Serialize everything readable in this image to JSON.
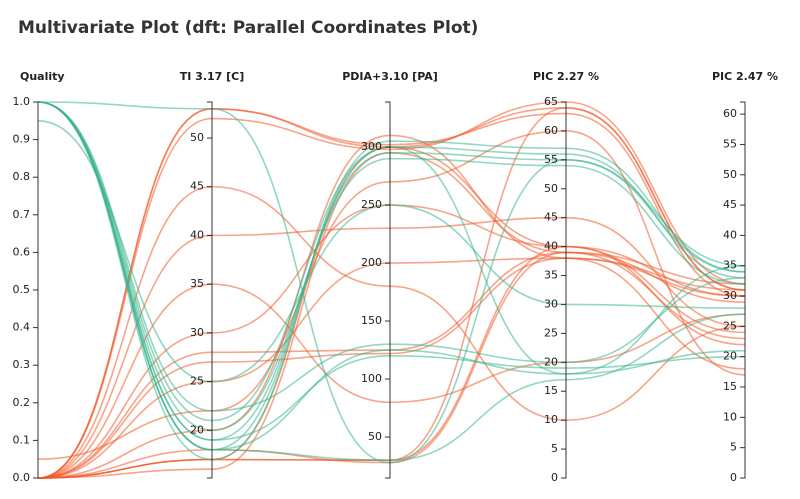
{
  "chart_data": {
    "type": "parallel",
    "title": "Multivariate Plot (dft: Parallel Coordinates Plot)",
    "dimensions": [
      {
        "name": "Quality",
        "ylim": [
          0,
          1
        ],
        "yticks": [
          {
            "value": 0,
            "label": "0.0"
          },
          0.1,
          0.2,
          0.3,
          0.4,
          0.5,
          0.6,
          0.7,
          0.8,
          0.9,
          {
            "value": 1,
            "label": "1.0"
          }
        ]
      },
      {
        "name": "TI 3.17 [C]",
        "ylim": [
          15.1,
          53.7
        ],
        "yticks": [
          20,
          25,
          30,
          35,
          40,
          45,
          50
        ]
      },
      {
        "name": "PDIA+3.10 [PA]",
        "ylim": [
          14.7,
          338.8
        ],
        "yticks": [
          50,
          100,
          150,
          200,
          250,
          300
        ]
      },
      {
        "name": "PIC 2.27 %",
        "ylim": [
          0,
          65
        ],
        "yticks": [
          0,
          5,
          10,
          15,
          20,
          25,
          30,
          35,
          40,
          45,
          50,
          55,
          60,
          65
        ]
      },
      {
        "name": "PIC 2.47 %",
        "ylim": [
          0,
          62
        ],
        "yticks": [
          0,
          5,
          10,
          15,
          20,
          25,
          30,
          35,
          40,
          45,
          50,
          55,
          60
        ]
      }
    ],
    "lines": [
      {
        "color": "#f1592a",
        "values": [
          0,
          53,
          300,
          64,
          31
        ]
      },
      {
        "color": "#f1592a",
        "values": [
          0,
          53,
          302,
          63,
          30
        ]
      },
      {
        "color": "#f1592a",
        "values": [
          0,
          52,
          298,
          65,
          32
        ]
      },
      {
        "color": "#f1592a",
        "values": [
          0,
          17,
          300,
          40,
          24
        ]
      },
      {
        "color": "#f1592a",
        "values": [
          0,
          16,
          295,
          39,
          23
        ]
      },
      {
        "color": "#f1592a",
        "values": [
          0,
          17,
          30,
          40,
          30
        ]
      },
      {
        "color": "#f1592a",
        "values": [
          0,
          18,
          28,
          39,
          29
        ]
      },
      {
        "color": "#f1592a",
        "values": [
          0,
          28,
          125,
          39,
          32
        ]
      },
      {
        "color": "#f1592a",
        "values": [
          0,
          27,
          122,
          38,
          31
        ]
      },
      {
        "color": "#f1592a",
        "values": [
          0,
          17,
          30,
          64,
          31
        ]
      },
      {
        "color": "#f1592a",
        "values": [
          0,
          30,
          250,
          40,
          22
        ]
      },
      {
        "color": "#f1592a",
        "values": [
          0,
          25,
          200,
          38,
          18
        ]
      },
      {
        "color": "#f1592a",
        "values": [
          0,
          35,
          80,
          20,
          27
        ]
      },
      {
        "color": "#f1592a",
        "values": [
          0,
          40,
          230,
          45,
          25
        ]
      },
      {
        "color": "#f1592a",
        "values": [
          0.05,
          22,
          270,
          60,
          17
        ]
      },
      {
        "color": "#f1592a",
        "values": [
          0,
          45,
          180,
          10,
          25
        ]
      },
      {
        "color": "#f1592a",
        "values": [
          0,
          20,
          310,
          38,
          30
        ]
      },
      {
        "color": "#3bb48e",
        "values": [
          1,
          18,
          300,
          56,
          33
        ]
      },
      {
        "color": "#3bb48e",
        "values": [
          1,
          19,
          295,
          55,
          35
        ]
      },
      {
        "color": "#3bb48e",
        "values": [
          1,
          17,
          305,
          57,
          34
        ]
      },
      {
        "color": "#3bb48e",
        "values": [
          1,
          20,
          290,
          54,
          32
        ]
      },
      {
        "color": "#3bb48e",
        "values": [
          1,
          18,
          125,
          18,
          21
        ]
      },
      {
        "color": "#3bb48e",
        "values": [
          1,
          19,
          120,
          19,
          20
        ]
      },
      {
        "color": "#3bb48e",
        "values": [
          1,
          53,
          28,
          55,
          34
        ]
      },
      {
        "color": "#3bb48e",
        "values": [
          1,
          18,
          30,
          17,
          27
        ]
      },
      {
        "color": "#3bb48e",
        "values": [
          1,
          21,
          300,
          18,
          35
        ]
      },
      {
        "color": "#3bb48e",
        "values": [
          0.95,
          25,
          250,
          30,
          28
        ]
      },
      {
        "color": "#3bb48e",
        "values": [
          1,
          22,
          130,
          20,
          33
        ]
      }
    ]
  }
}
